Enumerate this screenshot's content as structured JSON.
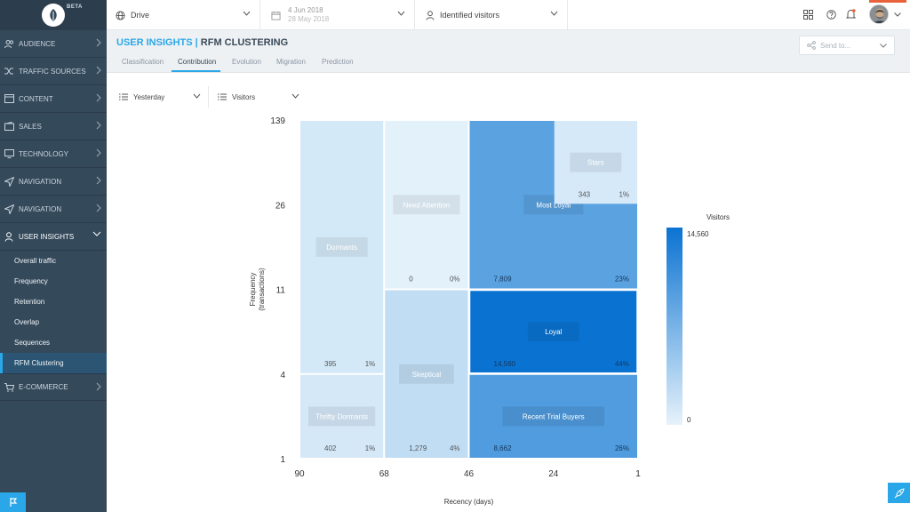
{
  "sidebar": {
    "logo_badge": "BETA",
    "items": [
      {
        "label": "AUDIENCE",
        "icon": "audience-icon"
      },
      {
        "label": "TRAFFIC SOURCES",
        "icon": "shuffle-icon"
      },
      {
        "label": "CONTENT",
        "icon": "content-icon"
      },
      {
        "label": "SALES",
        "icon": "wallet-icon"
      },
      {
        "label": "TECHNOLOGY",
        "icon": "monitor-icon"
      },
      {
        "label": "NAVIGATION",
        "icon": "paper-plane-icon"
      },
      {
        "label": "NAVIGATION",
        "icon": "paper-plane-icon"
      },
      {
        "label": "USER INSIGHTS",
        "icon": "user-icon"
      }
    ],
    "sub_items": [
      {
        "label": "Overall traffic"
      },
      {
        "label": "Frequency"
      },
      {
        "label": "Retention"
      },
      {
        "label": "Overlap"
      },
      {
        "label": "Sequences"
      },
      {
        "label": "RFM Clustering"
      }
    ],
    "last_item": {
      "label": "E-COMMERCE",
      "icon": "cart-icon"
    }
  },
  "topbar": {
    "site": "Drive",
    "date_from": "4 Jun 2018",
    "date_to": "28 May 2018",
    "segment": "Identified visitors"
  },
  "header": {
    "title_part1": "USER INSIGHTS",
    "title_sep": "|",
    "title_part2": "RFM CLUSTERING",
    "tabs": [
      "Classification",
      "Contribution",
      "Evolution",
      "Migration",
      "Prediction"
    ],
    "send_to": "Send to..."
  },
  "filters": {
    "period": "Yesterday",
    "metric": "Visitors"
  },
  "chart_data": {
    "type": "heatmap",
    "xlabel": "Recency (days)",
    "ylabel": "Frequency\n(transactions)",
    "x_ticks": [
      "90",
      "68",
      "46",
      "24",
      "1"
    ],
    "y_ticks": [
      "139",
      "26",
      "11",
      "4",
      "1"
    ],
    "legend_title": "Visitors",
    "legend_max": "14,560",
    "legend_min": "0",
    "cells": [
      {
        "name": "Dormants",
        "count": "395",
        "pct": "1%",
        "value": 395,
        "x_from": 90,
        "x_to": 68,
        "y_from": 4,
        "y_to": 139
      },
      {
        "name": "Thrifty Dormants",
        "count": "402",
        "pct": "1%",
        "value": 402,
        "x_from": 90,
        "x_to": 68,
        "y_from": 1,
        "y_to": 4
      },
      {
        "name": "Need Attention",
        "count": "0",
        "pct": "0%",
        "value": 0,
        "x_from": 68,
        "x_to": 46,
        "y_from": 11,
        "y_to": 139
      },
      {
        "name": "Skeptical",
        "count": "1,279",
        "pct": "4%",
        "value": 1279,
        "x_from": 68,
        "x_to": 46,
        "y_from": 1,
        "y_to": 11
      },
      {
        "name": "Stars",
        "count": "343",
        "pct": "1%",
        "value": 343,
        "x_from": 24,
        "x_to": 1,
        "y_from": 26,
        "y_to": 139
      },
      {
        "name": "Most Loyal",
        "count": "7,809",
        "pct": "23%",
        "value": 7809,
        "x_from": 46,
        "x_to": 1,
        "y_from": 11,
        "y_to": 139
      },
      {
        "name": "Loyal",
        "count": "14,560",
        "pct": "44%",
        "value": 14560,
        "x_from": 46,
        "x_to": 1,
        "y_from": 4,
        "y_to": 11
      },
      {
        "name": "Recent Trial Buyers",
        "count": "8,662",
        "pct": "26%",
        "value": 8662,
        "x_from": 46,
        "x_to": 1,
        "y_from": 1,
        "y_to": 4
      }
    ],
    "colors": {
      "low": "#e3f1fb",
      "high": "#0a73d2"
    }
  }
}
